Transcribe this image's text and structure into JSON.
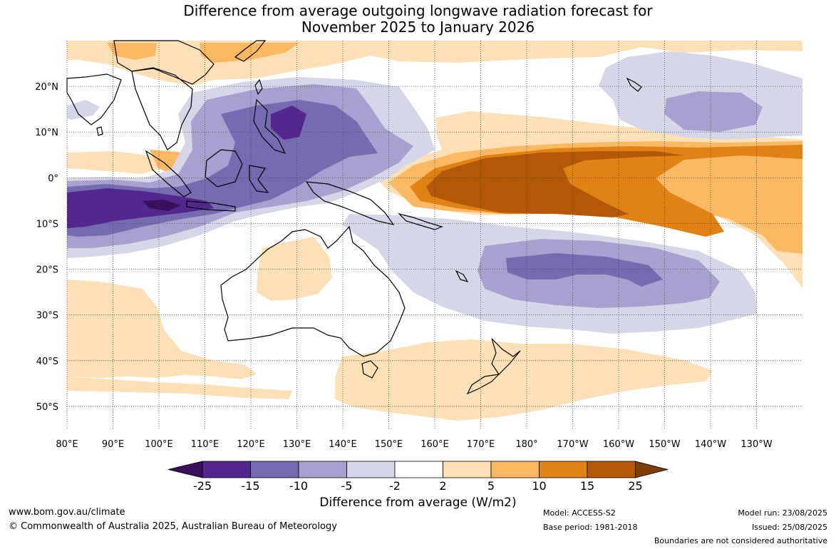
{
  "title": {
    "line1": "Difference from average outgoing longwave radiation forecast for",
    "line2": "November 2025 to January 2026"
  },
  "map": {
    "lon_range": [
      80,
      240
    ],
    "lat_range": [
      -55,
      30
    ],
    "lat_labels": [
      {
        "lat": 20,
        "label": "20°N"
      },
      {
        "lat": 10,
        "label": "10°N"
      },
      {
        "lat": 0,
        "label": "0°"
      },
      {
        "lat": -10,
        "label": "10°S"
      },
      {
        "lat": -20,
        "label": "20°S"
      },
      {
        "lat": -30,
        "label": "30°S"
      },
      {
        "lat": -40,
        "label": "40°S"
      },
      {
        "lat": -50,
        "label": "50°S"
      }
    ],
    "lon_labels": [
      {
        "lon": 80,
        "label": "80°E"
      },
      {
        "lon": 90,
        "label": "90°E"
      },
      {
        "lon": 100,
        "label": "100°E"
      },
      {
        "lon": 110,
        "label": "110°E"
      },
      {
        "lon": 120,
        "label": "120°E"
      },
      {
        "lon": 130,
        "label": "130°E"
      },
      {
        "lon": 140,
        "label": "140°E"
      },
      {
        "lon": 150,
        "label": "150°E"
      },
      {
        "lon": 160,
        "label": "160°E"
      },
      {
        "lon": 170,
        "label": "170°E"
      },
      {
        "lon": 180,
        "label": "180°"
      },
      {
        "lon": 190,
        "label": "170°W"
      },
      {
        "lon": 200,
        "label": "160°W"
      },
      {
        "lon": 210,
        "label": "150°W"
      },
      {
        "lon": 220,
        "label": "140°W"
      },
      {
        "lon": 230,
        "label": "130°W"
      }
    ]
  },
  "colorbar": {
    "title": "Difference from average (W/m2)",
    "tick_labels": [
      "-25",
      "-15",
      "-10",
      "-5",
      "-2",
      "2",
      "5",
      "10",
      "15",
      "25"
    ],
    "colors": [
      "#3b0f5c",
      "#54278f",
      "#756bb1",
      "#a8a1cf",
      "#d6d6e9",
      "#ffffff",
      "#fee0b6",
      "#fdb863",
      "#e08214",
      "#b35806",
      "#7f3b08"
    ]
  },
  "footer": {
    "website": "www.bom.gov.au/climate",
    "copyright": "© Commonwealth of Australia 2025, Australian Bureau of Meteorology",
    "model": "Model: ACCESS-S2",
    "base_period": "Base period: 1981-2018",
    "model_run": "Model run: 23/08/2025",
    "issued": "Issued: 25/08/2025",
    "disclaimer": "Boundaries are not considered authoritative"
  }
}
